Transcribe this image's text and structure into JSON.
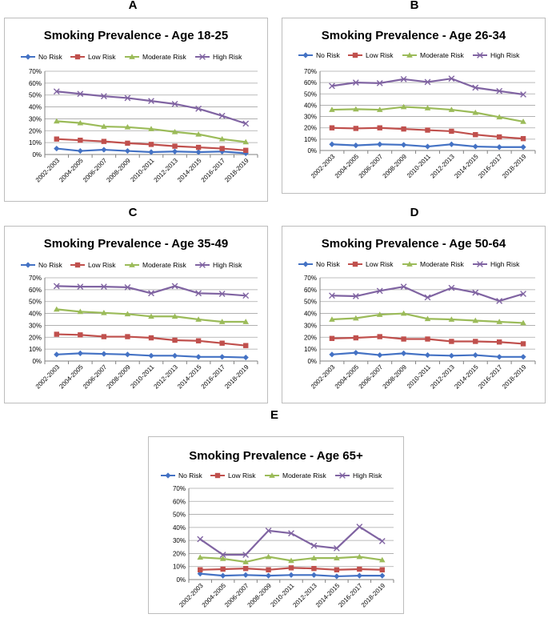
{
  "colors": {
    "No Risk": "#4472c4",
    "Low Risk": "#c0504d",
    "Moderate Risk": "#9bbb59",
    "High Risk": "#8064a2"
  },
  "chart_data": [
    {
      "panel": "A",
      "type": "line",
      "title": "Smoking Prevalence - Age 18-25",
      "x": [
        "2002-2003",
        "2004-2005",
        "2006-2007",
        "2008-2009",
        "2010-2011",
        "2012-2013",
        "2014-2015",
        "2016-2017",
        "2018-2019"
      ],
      "ylim": [
        0,
        70
      ],
      "yticks": [
        "0%",
        "10%",
        "20%",
        "30%",
        "40%",
        "50%",
        "60%",
        "70%"
      ],
      "grid": true,
      "legend": "top",
      "series": [
        {
          "name": "No Risk",
          "marker": "diamond",
          "values": [
            5,
            3,
            4,
            3,
            2,
            2.5,
            2,
            2.5,
            1
          ]
        },
        {
          "name": "Low Risk",
          "marker": "square",
          "values": [
            13,
            12,
            11,
            9.5,
            8.5,
            7,
            6,
            5,
            3.5
          ]
        },
        {
          "name": "Moderate Risk",
          "marker": "triangle",
          "values": [
            28,
            26.5,
            23.5,
            23,
            21.5,
            19,
            17,
            13,
            10.5
          ]
        },
        {
          "name": "High Risk",
          "marker": "x",
          "values": [
            53,
            51,
            49,
            47.5,
            45,
            42.5,
            38.5,
            32.5,
            26
          ]
        }
      ]
    },
    {
      "panel": "B",
      "type": "line",
      "title": "Smoking Prevalence - Age 26-34",
      "x": [
        "2002-2003",
        "2004-2005",
        "2006-2007",
        "2008-2009",
        "2010-2011",
        "2012-2013",
        "2014-2015",
        "2016-2017",
        "2018-2019"
      ],
      "ylim": [
        0,
        70
      ],
      "yticks": [
        "0%",
        "10%",
        "20%",
        "30%",
        "40%",
        "50%",
        "60%",
        "70%"
      ],
      "grid": true,
      "legend": "top",
      "series": [
        {
          "name": "No Risk",
          "marker": "diamond",
          "values": [
            5.5,
            4.5,
            5.5,
            5,
            3.5,
            5.5,
            3.5,
            3,
            3
          ]
        },
        {
          "name": "Low Risk",
          "marker": "square",
          "values": [
            20,
            19.5,
            20,
            19,
            18,
            17,
            14,
            12,
            10.5
          ]
        },
        {
          "name": "Moderate Risk",
          "marker": "triangle",
          "values": [
            36,
            36.5,
            36,
            38.5,
            37.5,
            36,
            33.5,
            29.5,
            25.5
          ]
        },
        {
          "name": "High Risk",
          "marker": "x",
          "values": [
            57,
            60,
            59.5,
            63,
            60.5,
            63.5,
            55.5,
            52.5,
            49.5
          ]
        }
      ]
    },
    {
      "panel": "C",
      "type": "line",
      "title": "Smoking Prevalence - Age 35-49",
      "x": [
        "2002-2003",
        "2004-2005",
        "2006-2007",
        "2008-2009",
        "2010-2011",
        "2012-2013",
        "2014-2015",
        "2016-2017",
        "2018-2019"
      ],
      "ylim": [
        0,
        70
      ],
      "yticks": [
        "0%",
        "10%",
        "20%",
        "30%",
        "40%",
        "50%",
        "60%",
        "70%"
      ],
      "grid": true,
      "legend": "top",
      "series": [
        {
          "name": "No Risk",
          "marker": "diamond",
          "values": [
            5.5,
            6.5,
            6,
            5.5,
            4.5,
            4.5,
            3.5,
            3.5,
            3
          ]
        },
        {
          "name": "Low Risk",
          "marker": "square",
          "values": [
            22.5,
            22,
            20.5,
            20.5,
            19.5,
            17.5,
            17,
            15,
            13
          ]
        },
        {
          "name": "Moderate Risk",
          "marker": "triangle",
          "values": [
            43.5,
            41.5,
            40.5,
            39.5,
            37.5,
            37.5,
            35,
            33,
            33
          ]
        },
        {
          "name": "High Risk",
          "marker": "x",
          "values": [
            63,
            62.5,
            62.5,
            62,
            57,
            63,
            57,
            56.5,
            55
          ]
        }
      ]
    },
    {
      "panel": "D",
      "type": "line",
      "title": "Smoking Prevalence - Age 50-64",
      "x": [
        "2002-2003",
        "2004-2005",
        "2006-2007",
        "2008-2009",
        "2010-2011",
        "2012-2013",
        "2014-2015",
        "2016-2017",
        "2018-2019"
      ],
      "ylim": [
        0,
        70
      ],
      "yticks": [
        "0%",
        "10%",
        "20%",
        "30%",
        "40%",
        "50%",
        "60%",
        "70%"
      ],
      "grid": true,
      "legend": "top",
      "series": [
        {
          "name": "No Risk",
          "marker": "diamond",
          "values": [
            5.5,
            7,
            5,
            6.5,
            5,
            4.5,
            5,
            3.5,
            3.5
          ]
        },
        {
          "name": "Low Risk",
          "marker": "square",
          "values": [
            19,
            19.5,
            20.5,
            18.5,
            18.5,
            16.5,
            16.5,
            16,
            14.5
          ]
        },
        {
          "name": "Moderate Risk",
          "marker": "triangle",
          "values": [
            35,
            36,
            39,
            40,
            35.5,
            35,
            34,
            33,
            32
          ]
        },
        {
          "name": "High Risk",
          "marker": "x",
          "values": [
            55,
            54.5,
            59,
            62.5,
            53.5,
            61.5,
            57.5,
            50.5,
            56.5
          ]
        }
      ]
    },
    {
      "panel": "E",
      "type": "line",
      "title": "Smoking Prevalence - Age 65+",
      "x": [
        "2002-2003",
        "2004-2005",
        "2006-2007",
        "2008-2009",
        "2010-2011",
        "2012-2013",
        "2014-2015",
        "2016-2017",
        "2018-2019"
      ],
      "ylim": [
        0,
        70
      ],
      "yticks": [
        "0%",
        "10%",
        "20%",
        "30%",
        "40%",
        "50%",
        "60%",
        "70%"
      ],
      "grid": true,
      "legend": "top",
      "series": [
        {
          "name": "No Risk",
          "marker": "diamond",
          "values": [
            4.5,
            3,
            3.5,
            3,
            3.5,
            3.5,
            2.5,
            3,
            3
          ]
        },
        {
          "name": "Low Risk",
          "marker": "square",
          "values": [
            7.5,
            8,
            8.5,
            7.5,
            9,
            8.5,
            7.5,
            8,
            7.5
          ]
        },
        {
          "name": "Moderate Risk",
          "marker": "triangle",
          "values": [
            17,
            16,
            13.5,
            17.5,
            14.5,
            16.5,
            16.5,
            17.5,
            15
          ]
        },
        {
          "name": "High Risk",
          "marker": "x",
          "values": [
            31,
            19,
            19,
            37.5,
            35.5,
            26,
            24,
            40.5,
            29.5
          ]
        }
      ]
    }
  ]
}
